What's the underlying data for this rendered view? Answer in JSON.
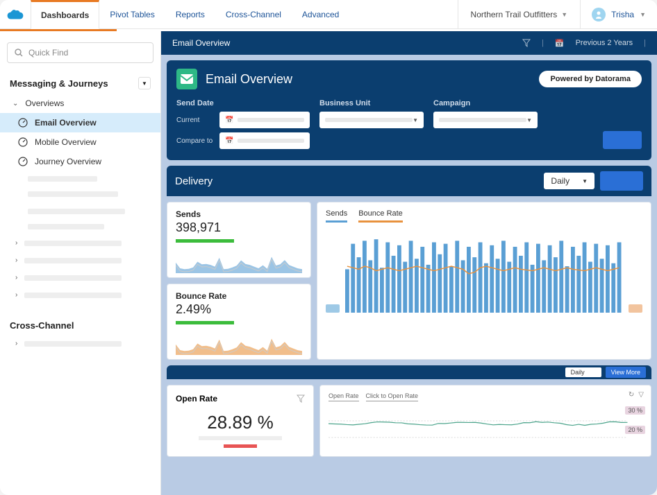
{
  "theme": {
    "navy": "#0b3e6f",
    "orange": "#e87a23",
    "blue": "#5a9fd4",
    "orange2": "#e8923e",
    "green": "#3cbc3c",
    "red": "#e85454",
    "primary_btn": "#2a6fd6"
  },
  "topbar": {
    "tabs": [
      "Dashboards",
      "Pivot Tables",
      "Reports",
      "Cross-Channel",
      "Advanced"
    ],
    "active_tab": "Dashboards",
    "org": "Northern Trail Outfitters",
    "user": "Trisha"
  },
  "sidebar": {
    "search_placeholder": "Quick Find",
    "section1": "Messaging & Journeys",
    "overviews_label": "Overviews",
    "items": [
      {
        "label": "Email Overview",
        "active": true
      },
      {
        "label": "Mobile Overview",
        "active": false
      },
      {
        "label": "Journey Overview",
        "active": false
      }
    ],
    "section2": "Cross-Channel"
  },
  "page": {
    "breadcrumb": "Email Overview",
    "date_range": "Previous 2 Years",
    "hero_title": "Email Overview",
    "powered_by": "Powered by Datorama",
    "filters": {
      "send_date": "Send Date",
      "current": "Current",
      "compare": "Compare to",
      "business_unit": "Business Unit",
      "campaign": "Campaign"
    }
  },
  "delivery": {
    "title": "Delivery",
    "granularity": "Daily",
    "sends": {
      "label": "Sends",
      "value": "398,971",
      "spark_color": "#5a9fd4"
    },
    "bounce": {
      "label": "Bounce Rate",
      "value": "2.49%",
      "spark_color": "#e8923e"
    },
    "chart": {
      "tabs": [
        "Sends",
        "Bounce Rate"
      ],
      "legend_left_color": "#9ec9e6",
      "legend_right_color": "#f2c49e",
      "bar_color": "#5a9fd4",
      "line_color": "#e8923e",
      "bar_count": 48,
      "bars": [
        58,
        92,
        74,
        96,
        70,
        98,
        60,
        94,
        76,
        90,
        68,
        96,
        72,
        88,
        64,
        94,
        78,
        92,
        62,
        96,
        70,
        88,
        74,
        94,
        66,
        90,
        72,
        96,
        68,
        88,
        76,
        94,
        64,
        92,
        70,
        90,
        74,
        96,
        62,
        88,
        76,
        94,
        68,
        92,
        72,
        90,
        66,
        94
      ],
      "line": [
        62,
        60,
        58,
        62,
        60,
        56,
        58,
        60,
        58,
        56,
        58,
        60,
        62,
        60,
        58,
        56,
        58,
        60,
        62,
        60,
        58,
        52,
        54,
        60,
        62,
        60,
        58,
        56,
        58,
        60,
        58,
        57,
        56,
        58,
        60,
        58,
        56,
        58,
        60,
        58,
        57,
        56,
        58,
        60,
        58,
        56,
        58,
        60
      ]
    }
  },
  "lower": {
    "granularity": "Daily",
    "view_more": "View More",
    "open_rate": {
      "label": "Open Rate",
      "value": "28.89 %"
    },
    "line": {
      "tabs": [
        "Open Rate",
        "Click to Open Rate"
      ],
      "color": "#4aa38a",
      "tags": [
        "30 %",
        "20 %"
      ]
    }
  }
}
